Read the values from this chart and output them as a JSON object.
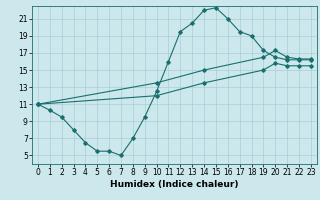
{
  "title": "",
  "xlabel": "Humidex (Indice chaleur)",
  "ylabel": "",
  "bg_color": "#cce8ec",
  "grid_color": "#aacdd4",
  "line_color": "#1a6e6e",
  "xlim": [
    -0.5,
    23.5
  ],
  "ylim": [
    4.0,
    22.5
  ],
  "xticks": [
    0,
    1,
    2,
    3,
    4,
    5,
    6,
    7,
    8,
    9,
    10,
    11,
    12,
    13,
    14,
    15,
    16,
    17,
    18,
    19,
    20,
    21,
    22,
    23
  ],
  "yticks": [
    5,
    7,
    9,
    11,
    13,
    15,
    17,
    19,
    21
  ],
  "line1_x": [
    0,
    1,
    2,
    3,
    4,
    5,
    6,
    7,
    8,
    9,
    10,
    11,
    12,
    13,
    14,
    15,
    16,
    17,
    18,
    19,
    20,
    21,
    22,
    23
  ],
  "line1_y": [
    11.0,
    10.3,
    9.5,
    8.0,
    6.5,
    5.5,
    5.5,
    5.0,
    7.0,
    9.5,
    12.5,
    16.0,
    19.5,
    20.5,
    22.0,
    22.3,
    21.0,
    19.5,
    19.0,
    17.3,
    16.5,
    16.2,
    16.2,
    16.2
  ],
  "line2_x": [
    0,
    10,
    14,
    19,
    20,
    21,
    22,
    23
  ],
  "line2_y": [
    11.0,
    13.5,
    15.0,
    16.5,
    17.3,
    16.5,
    16.3,
    16.3
  ],
  "line3_x": [
    0,
    10,
    14,
    19,
    20,
    21,
    22,
    23
  ],
  "line3_y": [
    11.0,
    12.0,
    13.5,
    15.0,
    15.8,
    15.5,
    15.5,
    15.5
  ],
  "tick_fontsize": 5.5,
  "xlabel_fontsize": 6.5,
  "marker_size": 1.8,
  "line_width": 0.8
}
